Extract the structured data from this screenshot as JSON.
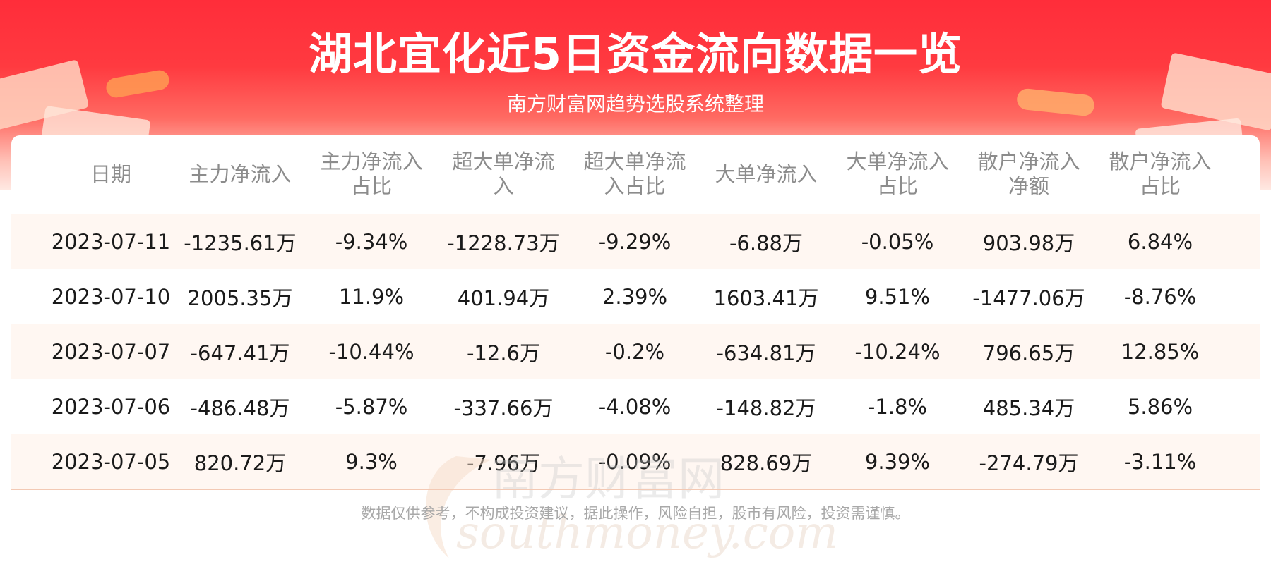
{
  "header": {
    "title": "湖北宜化近5日资金流向数据一览",
    "subtitle": "南方财富网趋势选股系统整理"
  },
  "table": {
    "columns": [
      "日期",
      "主力净流入",
      "主力净流入占比",
      "超大单净流入",
      "超大单净流入占比",
      "大单净流入",
      "大单净流入占比",
      "散户净流入净额",
      "散户净流入占比"
    ],
    "rows": [
      [
        "2023-07-11",
        "-1235.61万",
        "-9.34%",
        "-1228.73万",
        "-9.29%",
        "-6.88万",
        "-0.05%",
        "903.98万",
        "6.84%"
      ],
      [
        "2023-07-10",
        "2005.35万",
        "11.9%",
        "401.94万",
        "2.39%",
        "1603.41万",
        "9.51%",
        "-1477.06万",
        "-8.76%"
      ],
      [
        "2023-07-07",
        "-647.41万",
        "-10.44%",
        "-12.6万",
        "-0.2%",
        "-634.81万",
        "-10.24%",
        "796.65万",
        "12.85%"
      ],
      [
        "2023-07-06",
        "-486.48万",
        "-5.87%",
        "-337.66万",
        "-4.08%",
        "-148.82万",
        "-1.8%",
        "485.34万",
        "5.86%"
      ],
      [
        "2023-07-05",
        "820.72万",
        "9.3%",
        "-7.96万",
        "-0.09%",
        "828.69万",
        "9.39%",
        "-274.79万",
        "-3.11%"
      ]
    ]
  },
  "watermark": {
    "cn": "南方财富网",
    "en": "southmoney.com"
  },
  "footer": {
    "disclaimer": "数据仅供参考，不构成投资建议，据此操作，风险自担，股市有风险，投资需谨慎。"
  },
  "colors": {
    "banner_red": "#ff2d3a",
    "row_tint": "#fff7f2",
    "header_text": "#8c8c8c"
  }
}
